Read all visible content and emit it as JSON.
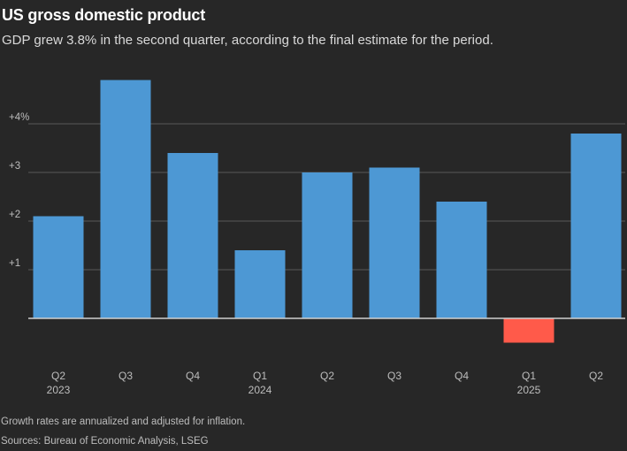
{
  "header": {
    "title": "US gross domestic product",
    "subtitle": "GDP grew 3.8% in the second quarter, according to the final estimate for the period."
  },
  "footer": {
    "note": "Growth rates are annualized and adjusted for inflation.",
    "sources": "Sources: Bureau of Economic Analysis, LSEG"
  },
  "colors": {
    "positive": "#4d98d4",
    "negative": "#ff5a4a",
    "grid": "#5a5a5a",
    "baseline": "#cfcfcf",
    "tick_text": "#bdbdbd",
    "background": "#272727"
  },
  "chart_data": {
    "type": "bar",
    "title": "US gross domestic product",
    "xlabel": "",
    "ylabel": "",
    "ylim": [
      -0.6,
      4.6
    ],
    "yticks": [
      1,
      2,
      3,
      4
    ],
    "ytick_labels": [
      "+1",
      "+2",
      "+3",
      "+4%"
    ],
    "grid": true,
    "categories": [
      "Q2",
      "Q3",
      "Q4",
      "Q1",
      "Q2",
      "Q3",
      "Q4",
      "Q1",
      "Q2"
    ],
    "year_labels": [
      "2023",
      "",
      "",
      "2024",
      "",
      "",
      "",
      "2025",
      ""
    ],
    "values": [
      2.1,
      4.9,
      3.4,
      1.4,
      3.0,
      3.1,
      2.4,
      -0.5,
      3.8
    ]
  }
}
